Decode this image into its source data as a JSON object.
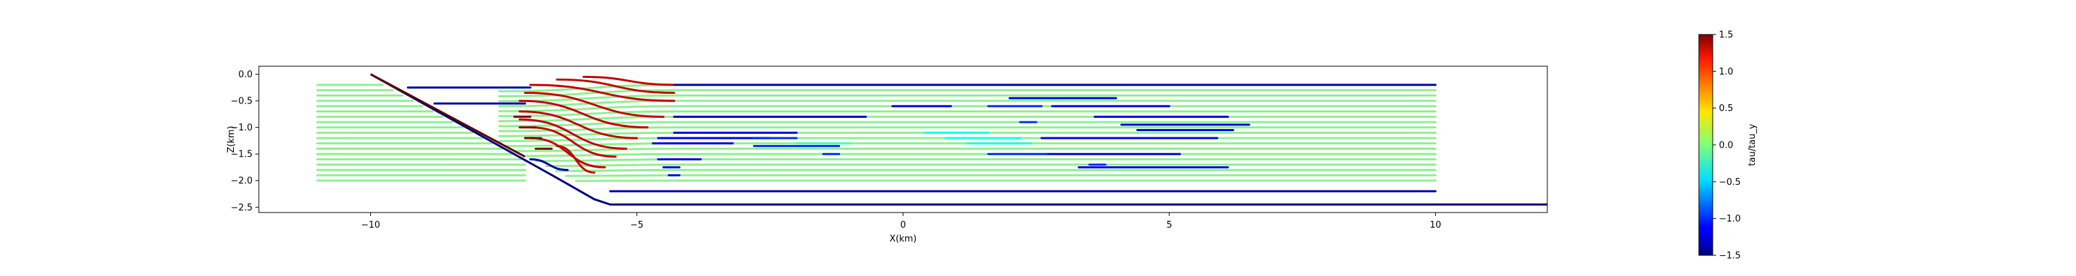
{
  "chart_data": {
    "type": "line",
    "xlabel": "X(km)",
    "ylabel": "Z(km)",
    "xlim": [
      -12.1,
      12.1
    ],
    "ylim": [
      -2.6,
      0.15
    ],
    "xticks": [
      -10,
      -5,
      0,
      5,
      10
    ],
    "yticks": [
      0.0,
      -0.5,
      -1.0,
      -1.5,
      -2.0,
      -2.5
    ],
    "grid": false,
    "legend": "none",
    "colorbar": {
      "label": "tau/tau_y",
      "min": -1.5,
      "max": 1.5,
      "ticks": [
        1.5,
        1.0,
        0.5,
        0.0,
        -0.5,
        -1.0,
        -1.5
      ],
      "colormap": "jet",
      "placement": "right"
    },
    "geometry": {
      "bottom_boundary": [
        [
          -10.0,
          0.0
        ],
        [
          -6.5,
          -1.95
        ],
        [
          -5.8,
          -2.35
        ],
        [
          -5.5,
          -2.45
        ],
        [
          12.1,
          -2.45
        ]
      ],
      "upper_bank": [
        [
          -10.0,
          0.0
        ],
        [
          -7.1,
          -1.55
        ]
      ],
      "colors": {
        "boundary": "#00007a",
        "upper_bank": "#5a0000"
      }
    },
    "streamlines": {
      "count": 19,
      "z_levels": [
        -0.2,
        -0.3,
        -0.4,
        -0.5,
        -0.6,
        -0.7,
        -0.8,
        -0.9,
        -1.0,
        -1.1,
        -1.2,
        -1.3,
        -1.4,
        -1.5,
        -1.6,
        -1.7,
        -1.8,
        -1.9,
        -2.0
      ],
      "x_start": -11.0,
      "x_end": 10.0,
      "background_value": 0.25,
      "background_color": "#8ef08e"
    },
    "shear_segments": [
      {
        "x": [
          -6.0,
          -4.3
        ],
        "z": [
          -0.05,
          -0.2
        ],
        "value": 1.3
      },
      {
        "x": [
          -6.5,
          -4.3
        ],
        "z": [
          -0.1,
          -0.35
        ],
        "value": 1.3
      },
      {
        "x": [
          -7.0,
          -4.3
        ],
        "z": [
          -0.2,
          -0.5
        ],
        "value": 1.3
      },
      {
        "x": [
          -7.1,
          -4.5
        ],
        "z": [
          -0.35,
          -0.8
        ],
        "value": 1.3
      },
      {
        "x": [
          -7.2,
          -4.8
        ],
        "z": [
          -0.5,
          -1.0
        ],
        "value": 1.3
      },
      {
        "x": [
          -7.2,
          -5.0
        ],
        "z": [
          -0.7,
          -1.2
        ],
        "value": 1.3
      },
      {
        "x": [
          -7.2,
          -5.2
        ],
        "z": [
          -0.85,
          -1.4
        ],
        "value": 1.3
      },
      {
        "x": [
          -7.0,
          -5.4
        ],
        "z": [
          -1.0,
          -1.55
        ],
        "value": 1.3
      },
      {
        "x": [
          -7.0,
          -5.6
        ],
        "z": [
          -1.2,
          -1.75
        ],
        "value": 1.3
      },
      {
        "x": [
          -6.5,
          -5.8
        ],
        "z": [
          -1.35,
          -1.85
        ],
        "value": 1.3
      },
      {
        "x": [
          -7.3,
          -7.0
        ],
        "z": [
          -0.8,
          -0.8
        ],
        "value": 1.5
      },
      {
        "x": [
          -7.2,
          -6.9
        ],
        "z": [
          -1.0,
          -1.0
        ],
        "value": 1.5
      },
      {
        "x": [
          -7.1,
          -6.8
        ],
        "z": [
          -1.2,
          -1.2
        ],
        "value": 1.5
      },
      {
        "x": [
          -6.9,
          -6.6
        ],
        "z": [
          -1.4,
          -1.4
        ],
        "value": 1.5
      },
      {
        "x": [
          -4.3,
          10.0
        ],
        "z": [
          -0.2,
          -0.2
        ],
        "value": -1.4
      },
      {
        "x": [
          -5.5,
          10.0
        ],
        "z": [
          -2.2,
          -2.2
        ],
        "value": -1.4
      },
      {
        "x": [
          -9.3,
          -7.0
        ],
        "z": [
          -0.25,
          -0.25
        ],
        "value": -1.4
      },
      {
        "x": [
          -8.8,
          -7.1
        ],
        "z": [
          -0.55,
          -0.55
        ],
        "value": -1.4
      },
      {
        "x": [
          -7.0,
          -6.3
        ],
        "z": [
          -1.6,
          -1.8
        ],
        "value": -1.4
      },
      {
        "x": [
          -4.3,
          -0.7
        ],
        "z": [
          -0.8,
          -0.8
        ],
        "value": -1.3
      },
      {
        "x": [
          -4.3,
          -2.0
        ],
        "z": [
          -1.1,
          -1.1
        ],
        "value": -1.2
      },
      {
        "x": [
          -4.6,
          -2.5
        ],
        "z": [
          -1.2,
          -1.2
        ],
        "value": -1.2
      },
      {
        "x": [
          -4.7,
          -3.2
        ],
        "z": [
          -1.3,
          -1.3
        ],
        "value": -1.2
      },
      {
        "x": [
          -4.6,
          -3.8
        ],
        "z": [
          -1.6,
          -1.6
        ],
        "value": -1.2
      },
      {
        "x": [
          -4.5,
          -4.2
        ],
        "z": [
          -1.75,
          -1.75
        ],
        "value": -1.2
      },
      {
        "x": [
          -4.4,
          -4.2
        ],
        "z": [
          -1.9,
          -1.9
        ],
        "value": -1.2
      },
      {
        "x": [
          -2.8,
          -2.0
        ],
        "z": [
          -1.2,
          -1.2
        ],
        "value": -1.0
      },
      {
        "x": [
          -2.8,
          -1.2
        ],
        "z": [
          -1.35,
          -1.35
        ],
        "value": -1.0
      },
      {
        "x": [
          -1.5,
          -1.2
        ],
        "z": [
          -1.5,
          -1.5
        ],
        "value": -1.0
      },
      {
        "x": [
          -2.0,
          -1.0
        ],
        "z": [
          -1.3,
          -1.3
        ],
        "value": -0.2
      },
      {
        "x": [
          -0.2,
          0.9
        ],
        "z": [
          -0.6,
          -0.6
        ],
        "value": -1.2
      },
      {
        "x": [
          2.0,
          4.0
        ],
        "z": [
          -0.45,
          -0.45
        ],
        "value": -1.2
      },
      {
        "x": [
          1.6,
          2.6
        ],
        "z": [
          -0.6,
          -0.6
        ],
        "value": -1.0
      },
      {
        "x": [
          2.8,
          5.0
        ],
        "z": [
          -0.6,
          -0.6
        ],
        "value": -1.2
      },
      {
        "x": [
          3.6,
          6.1
        ],
        "z": [
          -0.8,
          -0.8
        ],
        "value": -1.2
      },
      {
        "x": [
          2.2,
          2.5
        ],
        "z": [
          -0.9,
          -0.9
        ],
        "value": -1.0
      },
      {
        "x": [
          4.1,
          6.5
        ],
        "z": [
          -0.95,
          -0.95
        ],
        "value": -1.2
      },
      {
        "x": [
          4.4,
          6.2
        ],
        "z": [
          -1.05,
          -1.05
        ],
        "value": -1.2
      },
      {
        "x": [
          2.6,
          5.9
        ],
        "z": [
          -1.2,
          -1.2
        ],
        "value": -1.2
      },
      {
        "x": [
          0.8,
          2.2
        ],
        "z": [
          -1.2,
          -1.2
        ],
        "value": -0.3
      },
      {
        "x": [
          0.4,
          1.6
        ],
        "z": [
          -1.1,
          -1.1
        ],
        "value": -0.3
      },
      {
        "x": [
          1.2,
          2.4
        ],
        "z": [
          -1.3,
          -1.3
        ],
        "value": -0.3
      },
      {
        "x": [
          2.7,
          5.2
        ],
        "z": [
          -1.5,
          -1.5
        ],
        "value": -1.2
      },
      {
        "x": [
          1.6,
          2.7
        ],
        "z": [
          -1.5,
          -1.5
        ],
        "value": -1.0
      },
      {
        "x": [
          3.3,
          6.1
        ],
        "z": [
          -1.75,
          -1.75
        ],
        "value": -1.2
      },
      {
        "x": [
          3.5,
          3.8
        ],
        "z": [
          -1.7,
          -1.7
        ],
        "value": -1.0
      }
    ]
  }
}
